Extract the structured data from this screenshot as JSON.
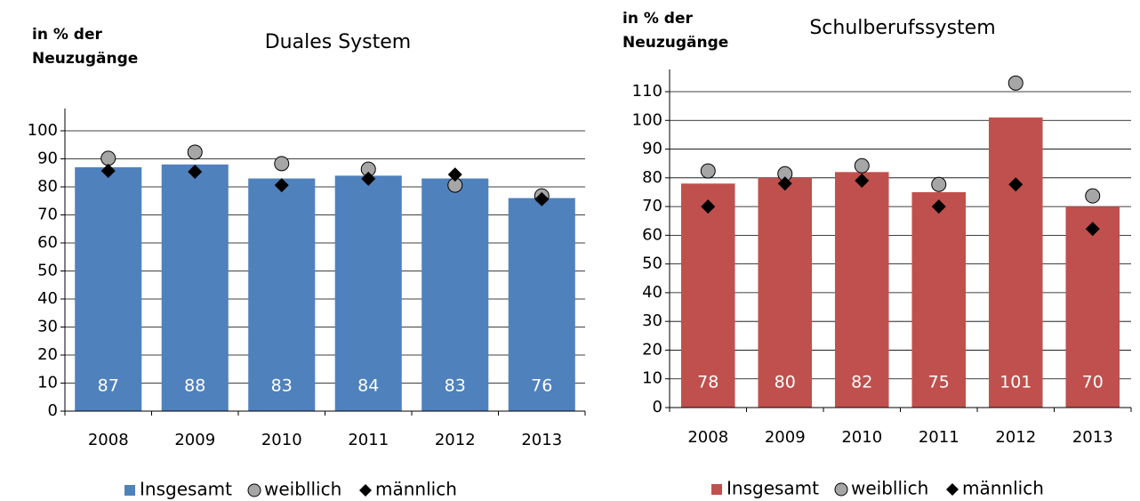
{
  "chart_data": [
    {
      "type": "bar",
      "title": "Duales System",
      "ylabel": "in % der Neuzugänge",
      "categories": [
        "2008",
        "2009",
        "2010",
        "2011",
        "2012",
        "2013"
      ],
      "ylim": [
        0,
        100
      ],
      "yticks": [
        0,
        10,
        20,
        30,
        40,
        50,
        60,
        70,
        80,
        90,
        100
      ],
      "grid": true,
      "series": [
        {
          "name": "Insgesamt",
          "marker": "bar",
          "color": "#4f81bd",
          "values": [
            87,
            88,
            83,
            84,
            83,
            76
          ]
        },
        {
          "name": "weibllich",
          "marker": "circle",
          "color": "#a6a6a6",
          "values": [
            90.2,
            92.4,
            88.3,
            86.3,
            80.6,
            76.8
          ]
        },
        {
          "name": "männlich",
          "marker": "diamond",
          "color": "#000000",
          "values": [
            85.7,
            85.4,
            80.6,
            82.9,
            84.4,
            75.6
          ]
        }
      ]
    },
    {
      "type": "bar",
      "title": "Schulberufssystem",
      "ylabel": "in % der Neuzugänge",
      "categories": [
        "2008",
        "2009",
        "2010",
        "2011",
        "2012",
        "2013"
      ],
      "ylim": [
        0,
        110
      ],
      "yticks": [
        0,
        10,
        20,
        30,
        40,
        50,
        60,
        70,
        80,
        90,
        100,
        110
      ],
      "grid": true,
      "series": [
        {
          "name": "Insgesamt",
          "marker": "bar",
          "color": "#c0504d",
          "values": [
            78,
            80,
            82,
            75,
            101,
            70
          ]
        },
        {
          "name": "weibllich",
          "marker": "circle",
          "color": "#a6a6a6",
          "values": [
            82.4,
            81.4,
            84.2,
            77.7,
            113,
            73.7
          ]
        },
        {
          "name": "männlich",
          "marker": "diamond",
          "color": "#000000",
          "values": [
            70,
            78,
            79,
            70,
            77.7,
            62.2
          ]
        }
      ]
    }
  ]
}
